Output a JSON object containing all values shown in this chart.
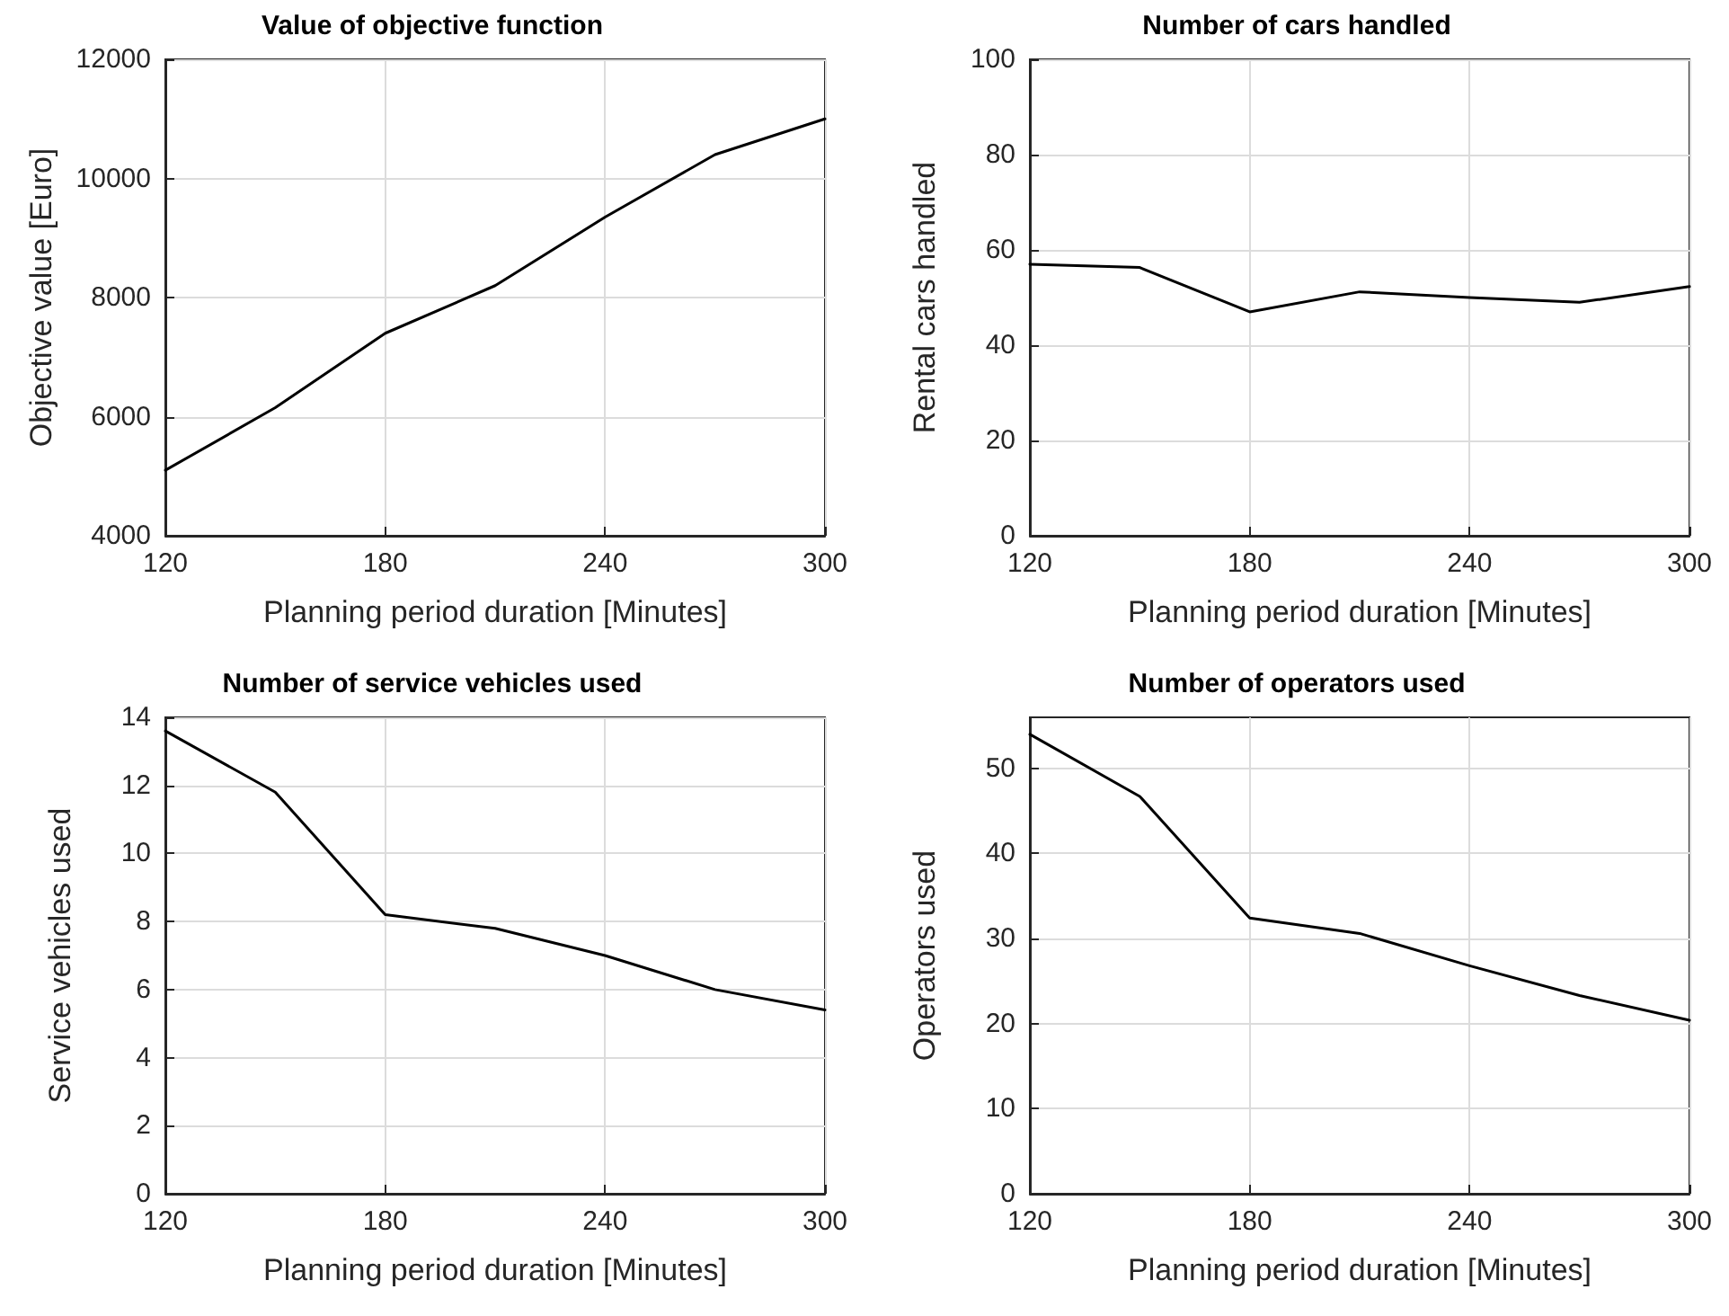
{
  "chart_data": [
    {
      "type": "line",
      "title": "Value of objective function",
      "xlabel": "Planning period duration [Minutes]",
      "ylabel": "Objective value [Euro]",
      "x": [
        120,
        150,
        180,
        210,
        240,
        270,
        300
      ],
      "values": [
        5100,
        6150,
        7400,
        8200,
        9350,
        10400,
        11000
      ],
      "color": "#000000",
      "xlim": [
        120,
        300
      ],
      "xticks": [
        120,
        180,
        240,
        300
      ],
      "ylim": [
        4000,
        12000
      ],
      "yticks": [
        4000,
        6000,
        8000,
        10000,
        12000
      ],
      "grid": true,
      "marker": "none"
    },
    {
      "type": "line",
      "title": "Number of cars handled",
      "xlabel": "Planning period duration [Minutes]",
      "ylabel": "Rental cars handled",
      "x": [
        120,
        150,
        180,
        210,
        240,
        270,
        300
      ],
      "values": [
        57,
        56.3,
        47,
        51.2,
        50,
        49,
        52.3
      ],
      "color": "#000000",
      "xlim": [
        120,
        300
      ],
      "xticks": [
        120,
        180,
        240,
        300
      ],
      "ylim": [
        0,
        100
      ],
      "yticks": [
        0,
        20,
        40,
        60,
        80,
        100
      ],
      "grid": true,
      "marker": "none"
    },
    {
      "type": "line",
      "title": "Number of service vehicles used",
      "xlabel": "Planning period duration [Minutes]",
      "ylabel": "Service vehicles used",
      "x": [
        120,
        150,
        180,
        210,
        240,
        270,
        300
      ],
      "values": [
        13.6,
        11.8,
        8.2,
        7.8,
        7.0,
        6.0,
        5.4
      ],
      "color": "#000000",
      "xlim": [
        120,
        300
      ],
      "xticks": [
        120,
        180,
        240,
        300
      ],
      "ylim": [
        0,
        14
      ],
      "yticks": [
        0,
        2,
        4,
        6,
        8,
        10,
        12,
        14
      ],
      "grid": true,
      "marker": "none"
    },
    {
      "type": "line",
      "title": "Number of operators used",
      "xlabel": "Planning period duration [Minutes]",
      "ylabel": "Operators used",
      "x": [
        120,
        150,
        180,
        210,
        240,
        270,
        300
      ],
      "values": [
        54,
        46.7,
        32.4,
        30.6,
        26.8,
        23.3,
        20.4
      ],
      "color": "#000000",
      "xlim": [
        120,
        300
      ],
      "xticks": [
        120,
        180,
        240,
        300
      ],
      "ylim": [
        0,
        56
      ],
      "yticks": [
        0,
        10,
        20,
        30,
        40,
        50
      ],
      "grid": true,
      "marker": "none"
    }
  ]
}
